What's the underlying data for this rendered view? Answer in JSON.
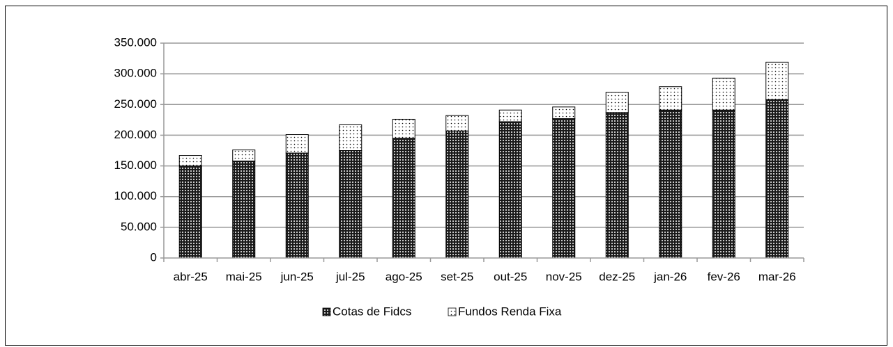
{
  "chart_data": {
    "type": "bar",
    "stacked": true,
    "categories": [
      "abr-25",
      "mai-25",
      "jun-25",
      "jul-25",
      "ago-25",
      "set-25",
      "out-25",
      "nov-25",
      "dez-25",
      "jan-26",
      "fev-26",
      "mar-26"
    ],
    "series": [
      {
        "name": "Cotas de Fidcs",
        "color": "#1a1a1a",
        "values": [
          150000,
          158000,
          171000,
          175000,
          195000,
          207000,
          222000,
          227000,
          237000,
          241000,
          241000,
          258000
        ]
      },
      {
        "name": "Fundos Renda Fixa",
        "color": "#ffffff",
        "values": [
          17000,
          18000,
          30000,
          42000,
          31000,
          25000,
          19000,
          19000,
          33000,
          38000,
          52000,
          61000
        ]
      }
    ],
    "ylim": [
      0,
      350000
    ],
    "yticks": [
      0,
      {
        "value": 50000,
        "label": "50.000"
      },
      {
        "value": 100000,
        "label": "100.000"
      },
      {
        "value": 150000,
        "label": "150.000"
      },
      {
        "value": 200000,
        "label": "200.000"
      },
      {
        "value": 250000,
        "label": "250.000"
      },
      {
        "value": 300000,
        "label": "300.000"
      },
      {
        "value": 350000,
        "label": "350.000"
      }
    ],
    "grid": true,
    "legend": "bottom"
  }
}
